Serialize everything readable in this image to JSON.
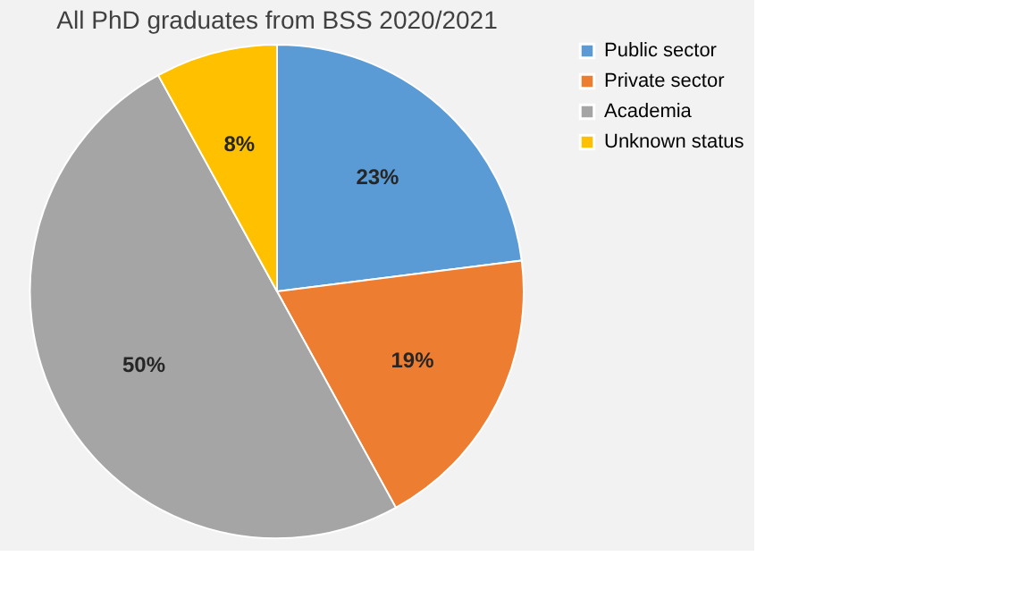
{
  "chart_data": {
    "type": "pie",
    "title": "All PhD graduates from BSS 2020/2021",
    "categories": [
      "Public sector",
      "Private sector",
      "Academia",
      "Unknown status"
    ],
    "values": [
      23,
      19,
      50,
      8
    ],
    "colors": [
      "#5b9bd5",
      "#ed7d31",
      "#a5a5a5",
      "#ffc000"
    ],
    "value_labels": [
      "23%",
      "19%",
      "50%",
      "8%"
    ],
    "legend": "right"
  }
}
